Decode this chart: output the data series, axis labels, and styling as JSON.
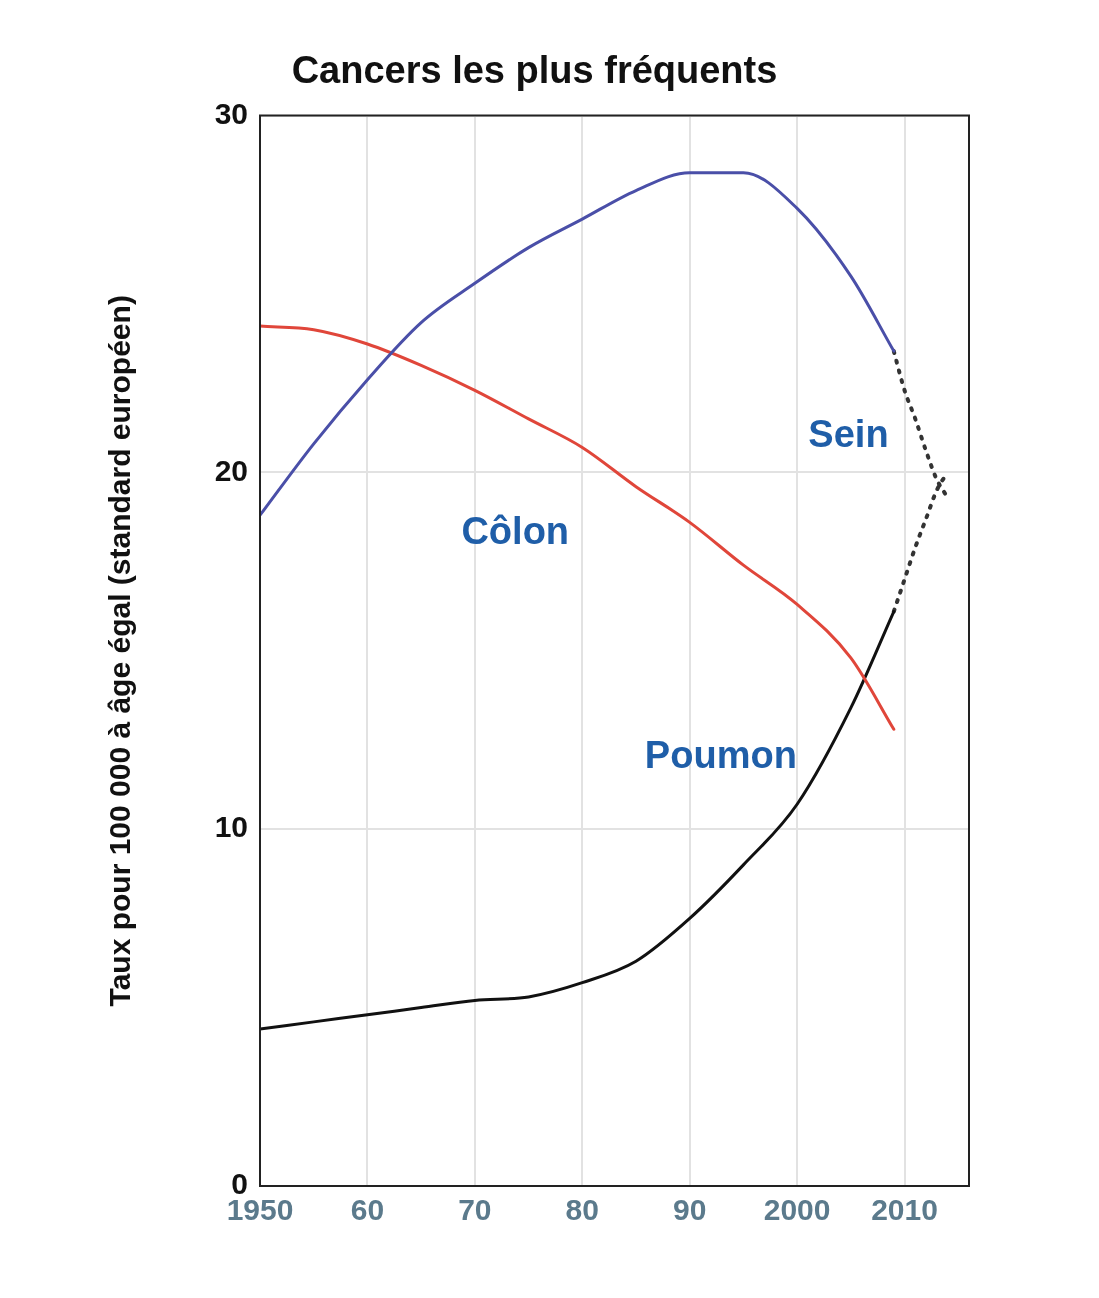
{
  "chart_data": {
    "type": "line",
    "title": "Cancers les plus fréquents",
    "ylabel": "Taux pour 100 000 à âge égal (standard européen)",
    "x": [
      1950,
      1955,
      1960,
      1965,
      1970,
      1975,
      1980,
      1985,
      1990,
      1995,
      2000,
      2005,
      2009
    ],
    "series": [
      {
        "name": "Sein",
        "color": "#4a4fa8",
        "values": [
          18.8,
          20.8,
          22.6,
          24.2,
          25.3,
          26.3,
          27.1,
          27.9,
          28.4,
          28.4,
          27.4,
          25.5,
          23.4
        ]
      },
      {
        "name": "Côlon",
        "color": "#e0463a",
        "values": [
          24.1,
          24.0,
          23.6,
          23.0,
          22.3,
          21.5,
          20.7,
          19.6,
          18.6,
          17.4,
          16.3,
          14.8,
          12.8
        ]
      },
      {
        "name": "Poumon",
        "color": "#111111",
        "values": [
          4.4,
          4.6,
          4.8,
          5.0,
          5.2,
          5.3,
          5.7,
          6.3,
          7.5,
          9.0,
          10.7,
          13.4,
          16.1
        ]
      },
      {
        "color": "#333333",
        "line_style": "dotted",
        "x": [
          2009,
          2010,
          2011,
          2012,
          2013,
          2014
        ],
        "values": [
          23.4,
          22.3,
          21.5,
          20.6,
          19.8,
          19.3
        ]
      },
      {
        "color": "#333333",
        "line_style": "dotted",
        "x": [
          2009,
          2010,
          2011,
          2012,
          2013,
          2014
        ],
        "values": [
          16.1,
          17.0,
          17.9,
          18.7,
          19.5,
          20.0
        ]
      }
    ],
    "xlim": [
      1950,
      2016
    ],
    "xticks": [
      1950,
      {
        "value": 1960,
        "label": "60"
      },
      {
        "value": 1970,
        "label": "70"
      },
      {
        "value": 1980,
        "label": "80"
      },
      {
        "value": 1990,
        "label": "90"
      },
      2000,
      2010
    ],
    "ylim": [
      0,
      30
    ],
    "yticks": [
      0,
      10,
      20,
      30
    ],
    "grid": true,
    "legend": false,
    "marker": "none",
    "line_style": "solid"
  }
}
